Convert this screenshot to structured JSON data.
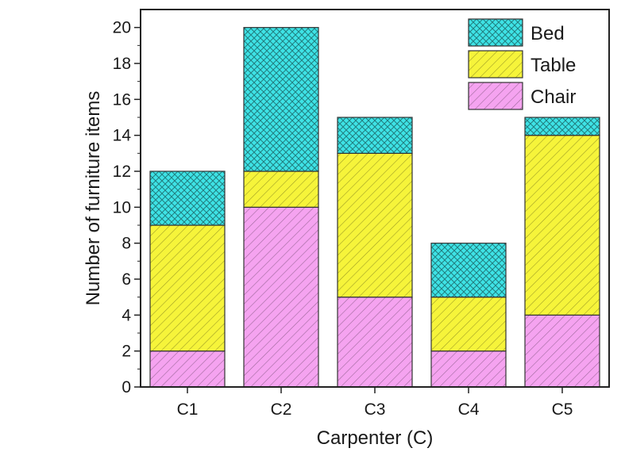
{
  "chart_data": {
    "type": "bar",
    "stacked": true,
    "categories": [
      "C1",
      "C2",
      "C3",
      "C4",
      "C5"
    ],
    "series": [
      {
        "name": "Chair",
        "values": [
          2,
          10,
          5,
          2,
          4
        ],
        "color": "#f5a3f0",
        "hatch": "diagonal"
      },
      {
        "name": "Table",
        "values": [
          7,
          2,
          8,
          3,
          10
        ],
        "color": "#f6f43a",
        "hatch": "diagonal"
      },
      {
        "name": "Bed",
        "values": [
          3,
          8,
          2,
          3,
          1
        ],
        "color": "#3ee3e6",
        "hatch": "crosshatch"
      }
    ],
    "xlabel": "Carpenter (C)",
    "ylabel": "Number of furniture items",
    "ylim": [
      0,
      21
    ],
    "yticks": [
      0,
      2,
      4,
      6,
      8,
      10,
      12,
      14,
      16,
      18,
      20
    ],
    "legend": {
      "position": "top-right",
      "order": [
        "Bed",
        "Table",
        "Chair"
      ]
    },
    "grid": false
  }
}
